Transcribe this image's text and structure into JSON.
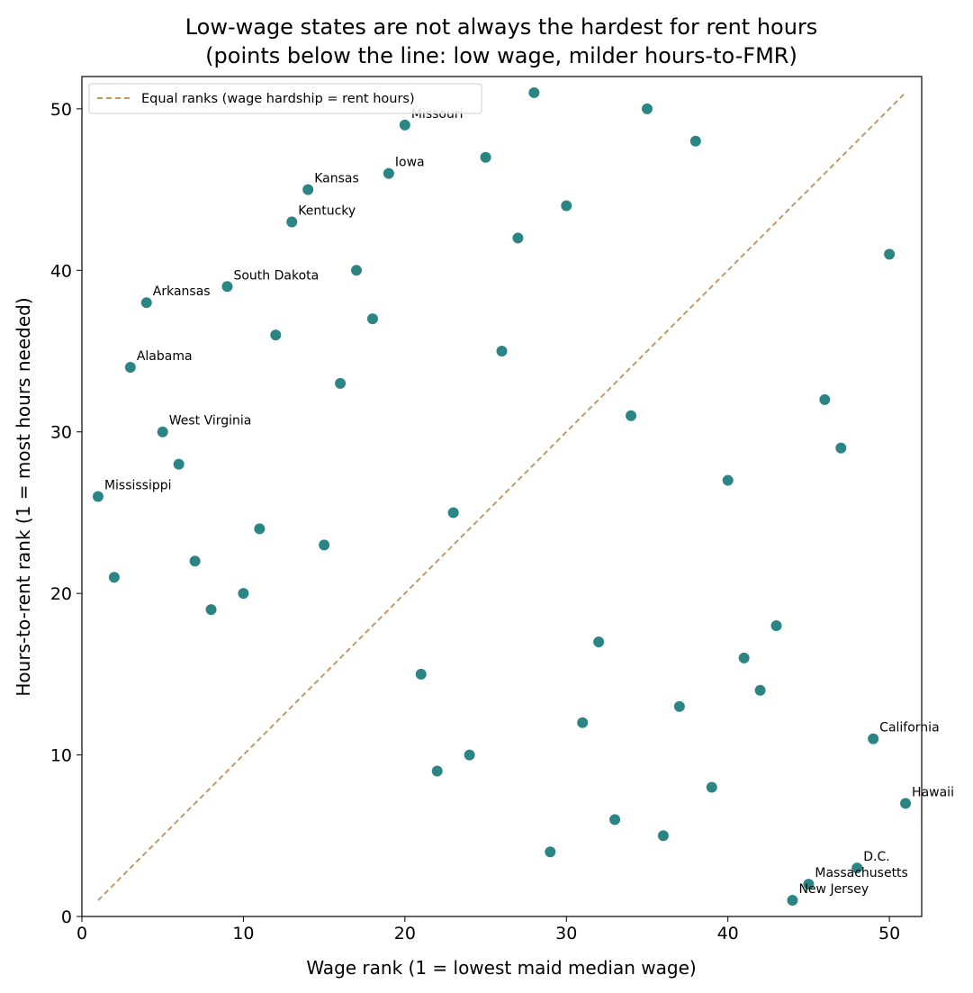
{
  "chart_data": {
    "type": "scatter",
    "title_line1": "Low-wage states are not always the hardest for rent hours",
    "title_line2": "(points below the line: low wage, milder hours-to-FMR)",
    "xlabel": "Wage rank (1 = lowest maid median wage)",
    "ylabel": "Hours-to-rent rank (1 = most hours needed)",
    "xlim": [
      0,
      52
    ],
    "ylim": [
      0,
      52
    ],
    "xticks": [
      0,
      10,
      20,
      30,
      40,
      50
    ],
    "yticks": [
      0,
      10,
      20,
      30,
      40,
      50
    ],
    "grid": false,
    "legend_position": "upper-left",
    "colors": {
      "points": "#2b8585",
      "point_edge": "#ffffff",
      "reference_line": "#c4995a"
    },
    "reference_line": {
      "label": "Equal ranks (wage hardship = rent hours)",
      "from": [
        1,
        1
      ],
      "to": [
        51,
        51
      ]
    },
    "points": [
      {
        "x": 1,
        "y": 26,
        "label": "Mississippi"
      },
      {
        "x": 2,
        "y": 21
      },
      {
        "x": 3,
        "y": 34,
        "label": "Alabama"
      },
      {
        "x": 4,
        "y": 38,
        "label": "Arkansas"
      },
      {
        "x": 5,
        "y": 30,
        "label": "West Virginia"
      },
      {
        "x": 6,
        "y": 28
      },
      {
        "x": 7,
        "y": 22
      },
      {
        "x": 8,
        "y": 19
      },
      {
        "x": 9,
        "y": 39,
        "label": "South Dakota"
      },
      {
        "x": 10,
        "y": 20
      },
      {
        "x": 11,
        "y": 24
      },
      {
        "x": 12,
        "y": 36
      },
      {
        "x": 13,
        "y": 43,
        "label": "Kentucky"
      },
      {
        "x": 14,
        "y": 45,
        "label": "Kansas"
      },
      {
        "x": 15,
        "y": 23
      },
      {
        "x": 16,
        "y": 33
      },
      {
        "x": 17,
        "y": 40
      },
      {
        "x": 18,
        "y": 37
      },
      {
        "x": 19,
        "y": 46,
        "label": "Iowa"
      },
      {
        "x": 20,
        "y": 49,
        "label": "Missouri"
      },
      {
        "x": 21,
        "y": 15
      },
      {
        "x": 22,
        "y": 9
      },
      {
        "x": 23,
        "y": 25
      },
      {
        "x": 24,
        "y": 10
      },
      {
        "x": 25,
        "y": 47
      },
      {
        "x": 26,
        "y": 35
      },
      {
        "x": 27,
        "y": 42
      },
      {
        "x": 28,
        "y": 51
      },
      {
        "x": 29,
        "y": 4
      },
      {
        "x": 30,
        "y": 44
      },
      {
        "x": 31,
        "y": 12
      },
      {
        "x": 32,
        "y": 17
      },
      {
        "x": 33,
        "y": 6
      },
      {
        "x": 34,
        "y": 31
      },
      {
        "x": 35,
        "y": 50
      },
      {
        "x": 36,
        "y": 5
      },
      {
        "x": 37,
        "y": 13
      },
      {
        "x": 38,
        "y": 48
      },
      {
        "x": 39,
        "y": 8
      },
      {
        "x": 40,
        "y": 27
      },
      {
        "x": 41,
        "y": 16
      },
      {
        "x": 42,
        "y": 14
      },
      {
        "x": 43,
        "y": 18
      },
      {
        "x": 44,
        "y": 1,
        "label": "New Jersey"
      },
      {
        "x": 45,
        "y": 2,
        "label": "Massachusetts"
      },
      {
        "x": 46,
        "y": 32
      },
      {
        "x": 47,
        "y": 29
      },
      {
        "x": 48,
        "y": 3,
        "label": "D.C."
      },
      {
        "x": 49,
        "y": 11,
        "label": "California"
      },
      {
        "x": 50,
        "y": 41
      },
      {
        "x": 51,
        "y": 7,
        "label": "Hawaii"
      }
    ]
  }
}
